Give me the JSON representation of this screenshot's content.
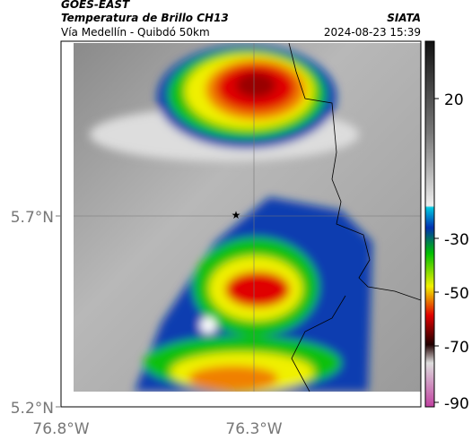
{
  "header": {
    "title": "GOES-EAST",
    "subtitle": "Temperatura de Brillo CH13",
    "source": "SIATA",
    "location": "Vía Medellín - Quibdó 50km",
    "datetime": "2024-08-23 15:39"
  },
  "map": {
    "lat_labels": [
      "5.7°N",
      "5.2°N"
    ],
    "lon_labels": [
      "76.8°W",
      "76.3°W"
    ]
  },
  "colorbar": {
    "labels": [
      "20",
      "-30",
      "-50",
      "-70",
      "-90"
    ]
  }
}
